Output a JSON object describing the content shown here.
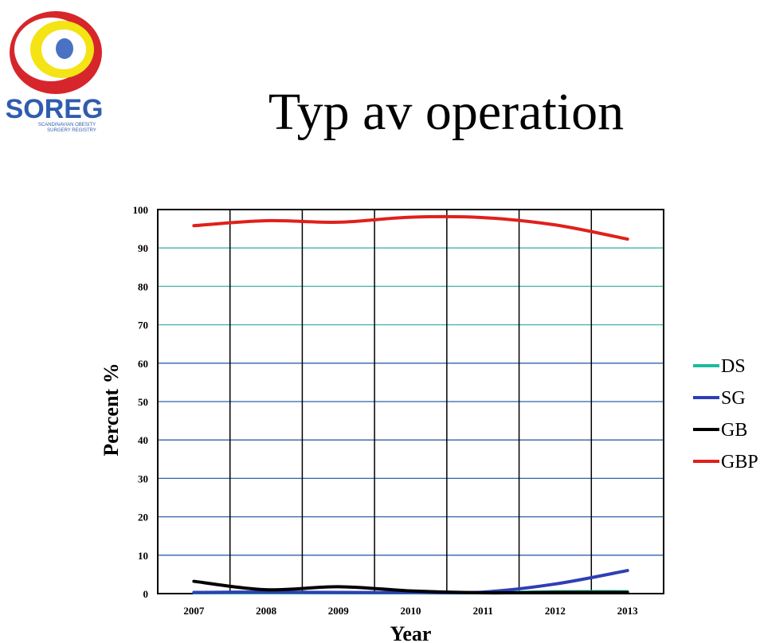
{
  "logo": {
    "text": "SOREG",
    "subtitle_line1": "SCANDINAVIAN OBESITY",
    "subtitle_line2": "SURGERY REGISTRY",
    "colors": {
      "outer": "#d6262b",
      "middle": "#f4e315",
      "inner_ring": "#ffffff",
      "center": "#4a72c4",
      "text": "#2f5cae"
    }
  },
  "slide": {
    "title": "Typ av operation"
  },
  "chart_data": {
    "type": "line",
    "categories": [
      "2007",
      "2008",
      "2009",
      "2010",
      "2011",
      "2012",
      "2013"
    ],
    "series": [
      {
        "name": "DS",
        "color": "#1abc9c",
        "values": [
          0.2,
          0.2,
          0.2,
          0.2,
          0.2,
          0.5,
          0.5
        ]
      },
      {
        "name": "SG",
        "color": "#2e3fb4",
        "values": [
          0.3,
          0.4,
          0.3,
          0.3,
          0.4,
          2.5,
          6.0
        ]
      },
      {
        "name": "GB",
        "color": "#000000",
        "values": [
          3.2,
          1.0,
          1.8,
          0.7,
          0.2,
          0.3,
          0.3
        ]
      },
      {
        "name": "GBP",
        "color": "#e0201b",
        "values": [
          95.8,
          97.1,
          96.7,
          98.0,
          97.9,
          96.0,
          92.3
        ]
      }
    ],
    "xlabel": "Year",
    "ylabel": "Percent %",
    "ylim": [
      0,
      100
    ],
    "yticks": [
      0,
      10,
      20,
      30,
      40,
      50,
      60,
      70,
      80,
      90,
      100
    ],
    "grid": true,
    "legend": "right"
  }
}
